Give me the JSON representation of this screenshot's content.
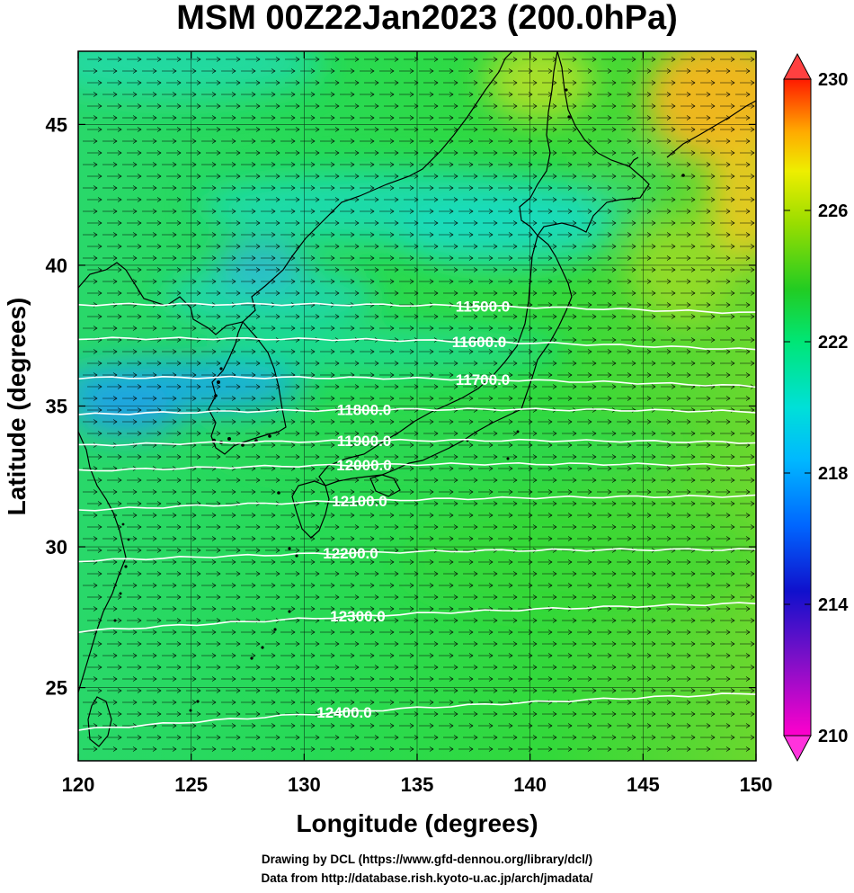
{
  "title": "MSM 00Z22Jan2023 (200.0hPa)",
  "xlabel": "Longitude (degrees)",
  "ylabel": "Latitude  (degrees)",
  "credits": [
    "Drawing by DCL (https://www.gfd-dennou.org/library/dcl/)",
    "Data from http://database.rish.kyoto-u.ac.jp/arch/jmadata/"
  ],
  "chart_data": {
    "type": "heatmap",
    "xlim": [
      120,
      150
    ],
    "ylim": [
      22.4,
      47.6
    ],
    "x_ticks": [
      "120",
      "125",
      "130",
      "135",
      "140",
      "145",
      "150"
    ],
    "y_ticks": [
      "25",
      "30",
      "35",
      "40",
      "45"
    ],
    "colorbar": {
      "range": [
        210,
        230
      ],
      "tick_labels": [
        "230",
        "226",
        "222",
        "218",
        "214",
        "210"
      ],
      "colors": [
        "#ff00cc",
        "#6a0dad",
        "#0000cc",
        "#0088ff",
        "#00ddee",
        "#00e676",
        "#22cc22",
        "#88dd00",
        "#eeee00",
        "#ffaa00",
        "#ff5500",
        "#ff0000"
      ]
    },
    "contours": [
      {
        "label": "11500.0",
        "lat_west": 38.6,
        "lat_east": 38.3
      },
      {
        "label": "11600.0",
        "lat_west": 37.4,
        "lat_east": 37.0
      },
      {
        "label": "11700.0",
        "lat_west": 36.0,
        "lat_east": 35.7
      },
      {
        "label": "11800.0",
        "lat_west": 34.7,
        "lat_east": 34.8
      },
      {
        "label": "11900.0",
        "lat_west": 33.6,
        "lat_east": 33.7
      },
      {
        "label": "12000.0",
        "lat_west": 32.7,
        "lat_east": 32.9
      },
      {
        "label": "12100.0",
        "lat_west": 31.3,
        "lat_east": 31.8
      },
      {
        "label": "12200.0",
        "lat_west": 29.5,
        "lat_east": 29.9
      },
      {
        "label": "12300.0",
        "lat_west": 27.0,
        "lat_east": 28.0
      },
      {
        "label": "12400.0",
        "lat_west": 23.5,
        "lat_east": 24.8
      }
    ]
  }
}
